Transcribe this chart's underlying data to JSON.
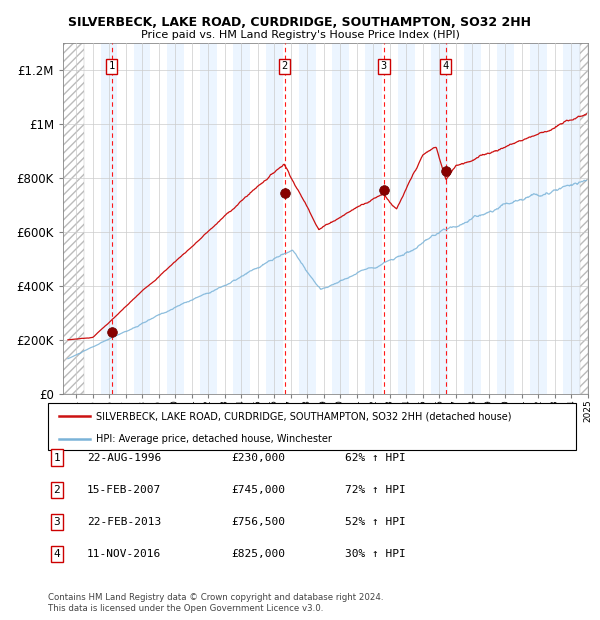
{
  "title": "SILVERBECK, LAKE ROAD, CURDRIDGE, SOUTHAMPTON, SO32 2HH",
  "subtitle": "Price paid vs. HM Land Registry's House Price Index (HPI)",
  "hpi_color": "#7ab3d8",
  "price_color": "#cc1111",
  "bg_stripe_color": "#ddeeff",
  "bg_stripe_alpha": 0.55,
  "sale_dates_years": [
    1996.64,
    2007.12,
    2013.14,
    2016.87
  ],
  "sale_prices": [
    230000,
    745000,
    756500,
    825000
  ],
  "sale_labels": [
    "1",
    "2",
    "3",
    "4"
  ],
  "ylim": [
    0,
    1300000
  ],
  "yticks": [
    0,
    200000,
    400000,
    600000,
    800000,
    1000000,
    1200000
  ],
  "ytick_labels": [
    "£0",
    "£200K",
    "£400K",
    "£600K",
    "£800K",
    "£1M",
    "£1.2M"
  ],
  "xlim_start": 1993.7,
  "xlim_end": 2025.5,
  "legend_line1": "SILVERBECK, LAKE ROAD, CURDRIDGE, SOUTHAMPTON, SO32 2HH (detached house)",
  "legend_line2": "HPI: Average price, detached house, Winchester",
  "table_entries": [
    [
      "1",
      "22-AUG-1996",
      "£230,000",
      "62% ↑ HPI"
    ],
    [
      "2",
      "15-FEB-2007",
      "£745,000",
      "72% ↑ HPI"
    ],
    [
      "3",
      "22-FEB-2013",
      "£756,500",
      "52% ↑ HPI"
    ],
    [
      "4",
      "11-NOV-2016",
      "£825,000",
      "30% ↑ HPI"
    ]
  ],
  "footer": "Contains HM Land Registry data © Crown copyright and database right 2024.\nThis data is licensed under the Open Government Licence v3.0."
}
